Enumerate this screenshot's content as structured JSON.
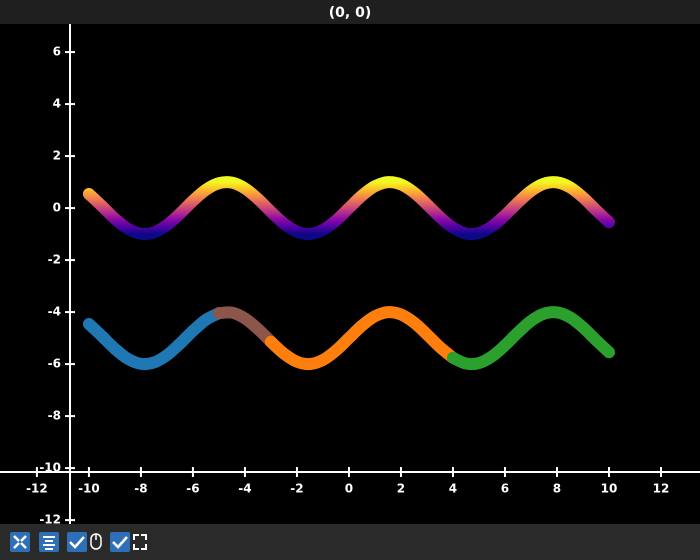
{
  "chart_data": {
    "type": "line",
    "title": "(0, 0)",
    "xlim": [
      -13.42,
      13.5
    ],
    "ylim": [
      -12.15,
      7.08
    ],
    "xticks": [
      -12,
      -10,
      -8,
      -6,
      -4,
      -2,
      0,
      2,
      4,
      6,
      8,
      10,
      12
    ],
    "yticks": [
      -12,
      -10,
      -8,
      -6,
      -4,
      -2,
      0,
      2,
      4,
      6
    ],
    "series": [
      {
        "colormap": [
          "#0d0887",
          "#5302a3",
          "#8b0aa5",
          "#b83289",
          "#db5c68",
          "#f48849",
          "#febd2a",
          "#f0f921"
        ],
        "x": [
          -10,
          -9.5,
          -9,
          -8.5,
          -8,
          -7.5,
          -7,
          -6.5,
          -6,
          -5.5,
          -5,
          -4.5,
          -4,
          -3.5,
          -3,
          -2.5,
          -2,
          -1.5,
          -1,
          -0.5,
          0,
          0.5,
          1,
          1.5,
          2,
          2.5,
          3,
          3.5,
          4,
          4.5,
          5,
          5.5,
          6,
          6.5,
          7,
          7.5,
          8,
          8.5,
          9,
          9.5,
          10
        ],
        "values": [
          0.544,
          0.075,
          -0.412,
          -0.798,
          -0.989,
          -0.938,
          -0.657,
          -0.215,
          0.279,
          0.706,
          0.959,
          0.978,
          0.757,
          0.351,
          -0.141,
          -0.598,
          -0.909,
          -0.997,
          -0.841,
          -0.479,
          0,
          0.479,
          0.841,
          0.997,
          0.909,
          0.598,
          0.141,
          -0.351,
          -0.757,
          -0.978,
          -0.959,
          -0.706,
          -0.279,
          0.215,
          0.657,
          0.938,
          0.989,
          0.798,
          0.412,
          -0.075,
          -0.544
        ]
      },
      {
        "color": "#1f77b4",
        "x": [
          -10,
          -9.5,
          -9,
          -8.5,
          -8,
          -7.5,
          -7,
          -6.5,
          -6,
          -5.5,
          -5
        ],
        "values": [
          -4.456,
          -4.925,
          -5.412,
          -5.798,
          -5.989,
          -5.938,
          -5.657,
          -5.215,
          -4.721,
          -4.294,
          -4.041
        ]
      },
      {
        "color": "#8c564b",
        "x": [
          -5,
          -4.5,
          -4,
          -3.5,
          -3
        ],
        "values": [
          -4.041,
          -4.022,
          -4.243,
          -4.649,
          -5.141
        ]
      },
      {
        "color": "#ff7f0e",
        "x": [
          -3,
          -2.5,
          -2,
          -1.5,
          -1,
          -0.5,
          0,
          0.5,
          1,
          1.5,
          2,
          2.5,
          3,
          3.5,
          4
        ],
        "values": [
          -5.141,
          -5.598,
          -5.909,
          -5.997,
          -5.841,
          -5.479,
          -5,
          -4.521,
          -4.159,
          -4.003,
          -4.091,
          -4.402,
          -4.859,
          -5.351,
          -5.757
        ]
      },
      {
        "color": "#2ca02c",
        "x": [
          4,
          4.5,
          5,
          5.5,
          6,
          6.5,
          7,
          7.5,
          8,
          8.5,
          9,
          9.5,
          10
        ],
        "values": [
          -5.757,
          -5.978,
          -5.959,
          -5.706,
          -5.279,
          -4.785,
          -4.343,
          -4.062,
          -4.011,
          -4.202,
          -4.588,
          -5.075,
          -5.544
        ]
      }
    ]
  }
}
